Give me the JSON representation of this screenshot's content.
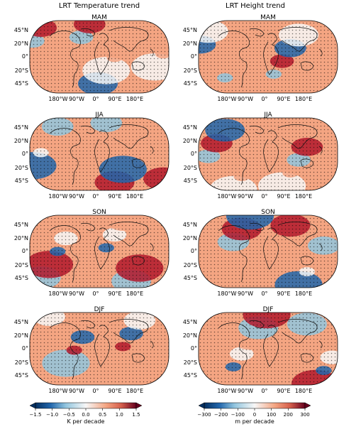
{
  "columns": [
    {
      "title": "LRT Temperature trend",
      "key": "temp"
    },
    {
      "title": "LRT Height trend",
      "key": "height"
    }
  ],
  "seasons": [
    "MAM",
    "JJA",
    "SON",
    "DJF"
  ],
  "lat_labels": [
    "45°N",
    "20°N",
    "0°",
    "20°S",
    "45°S"
  ],
  "lon_labels": [
    "180°W",
    "90°W",
    "0°",
    "90°E",
    "180°E"
  ],
  "colorbars": [
    {
      "label": "K per decade",
      "ticks": [
        "−1.5",
        "−1.0",
        "−0.5",
        "0.0",
        "0.5",
        "1.0",
        "1.5"
      ]
    },
    {
      "label": "m per decade",
      "ticks": [
        "−300",
        "−200",
        "−100",
        "0",
        "100",
        "200",
        "300"
      ]
    }
  ],
  "colors": {
    "cold": "#2166ac",
    "cool": "#92c5de",
    "neutral": "#f7f7f7",
    "warm": "#f4a582",
    "hot": "#b2182b",
    "coast": "#111111",
    "stipple": "#000000"
  }
}
